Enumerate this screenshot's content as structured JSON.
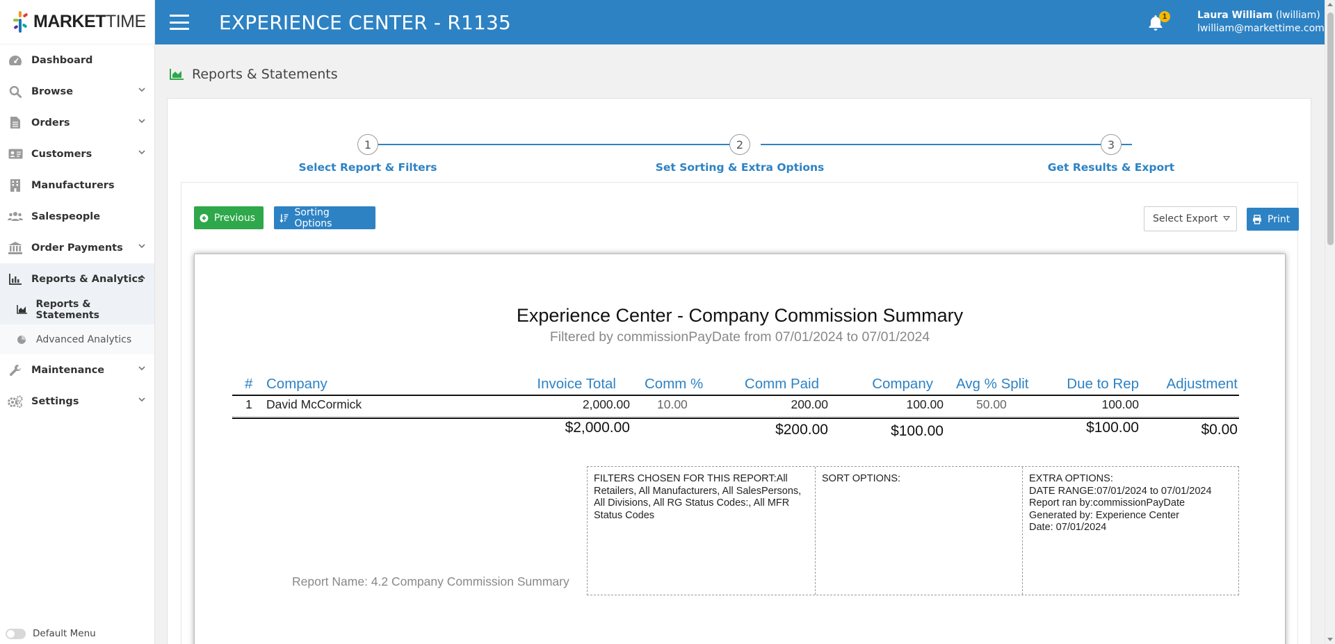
{
  "sidebar": {
    "logo": {
      "bold": "MARKET",
      "light": "TIME"
    },
    "items": [
      {
        "label": "Dashboard"
      },
      {
        "label": "Browse"
      },
      {
        "label": "Orders"
      },
      {
        "label": "Customers"
      },
      {
        "label": "Manufacturers"
      },
      {
        "label": "Salespeople"
      },
      {
        "label": "Order Payments"
      },
      {
        "label": "Reports & Analytics"
      },
      {
        "label": "Maintenance"
      },
      {
        "label": "Settings"
      }
    ],
    "subitems": [
      {
        "label": "Reports & Statements"
      },
      {
        "label": "Advanced Analytics"
      }
    ],
    "default_menu_label": "Default Menu"
  },
  "topbar": {
    "title": "EXPERIENCE CENTER - R1135",
    "notification_count": "1",
    "user_name": "Laura William",
    "user_handle": "(lwilliam)",
    "user_email": "lwilliam@markettime.com"
  },
  "page": {
    "title": "Reports & Statements"
  },
  "stepper": {
    "steps": [
      {
        "number": "1",
        "label": "Select Report & Filters"
      },
      {
        "number": "2",
        "label": "Set Sorting & Extra Options"
      },
      {
        "number": "3",
        "label": "Get Results & Export"
      }
    ]
  },
  "toolbar": {
    "previous_label": "Previous",
    "sorting_label": "Sorting Options",
    "select_export_label": "Select Export",
    "print_label": "Print"
  },
  "report": {
    "title": "Experience Center - Company Commission Summary",
    "subtitle": "Filtered by commissionPayDate from 07/01/2024 to 07/01/2024",
    "columns": [
      "#",
      "Company",
      "Invoice Total",
      "Comm %",
      "Comm Paid",
      "Company",
      "Avg % Split",
      "Due to Rep",
      "Adjustment"
    ],
    "rows": [
      {
        "num": "1",
        "company": "David McCormick",
        "invoice_total": "2,000.00",
        "comm_pct": "10.00",
        "comm_paid": "200.00",
        "company_amt": "100.00",
        "avg_split": "50.00",
        "due_to_rep": "100.00",
        "adjustment": ""
      }
    ],
    "totals": {
      "invoice_total": "$2,000.00",
      "comm_paid": "$200.00",
      "company_amt": "$100.00",
      "due_to_rep": "$100.00",
      "adjustment": "$0.00"
    },
    "filters_text": "FILTERS CHOSEN FOR THIS REPORT:All Retailers, All Manufacturers, All SalesPersons, All Divisions, All RG Status Codes:, All MFR Status Codes",
    "sort_text": "SORT OPTIONS:",
    "extra_lines": [
      "EXTRA OPTIONS:",
      "DATE RANGE:07/01/2024 to 07/01/2024",
      "Report ran by:commissionPayDate",
      "Generated by: Experience Center",
      "Date: 07/01/2024"
    ],
    "report_name": "Report Name: 4.2 Company Commission Summary"
  },
  "colors": {
    "primary": "#2d82c4",
    "success": "#2ea84a",
    "badge": "#f5b800"
  },
  "icons": [
    "dashboard-icon",
    "search-icon",
    "document-icon",
    "id-card-icon",
    "building-icon",
    "users-icon",
    "bank-icon",
    "bar-chart-icon",
    "area-chart-icon",
    "pie-chart-icon",
    "wrench-icon",
    "gears-icon",
    "bell-icon",
    "arrow-left-circle-icon",
    "sort-icon",
    "printer-icon"
  ]
}
